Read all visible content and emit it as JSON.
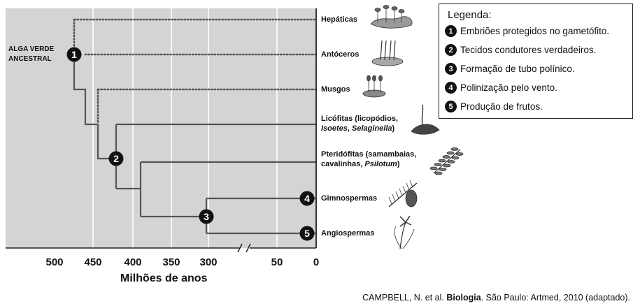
{
  "ancestral_label": [
    "ALGA VERDE",
    "ANCESTRAL"
  ],
  "taxa": [
    {
      "key": "hepaticas",
      "lines": [
        [
          {
            "t": "Hepáticas"
          }
        ]
      ]
    },
    {
      "key": "antoceros",
      "lines": [
        [
          {
            "t": "Antóceros"
          }
        ]
      ]
    },
    {
      "key": "musgos",
      "lines": [
        [
          {
            "t": "Musgos"
          }
        ]
      ]
    },
    {
      "key": "licofitas",
      "lines": [
        [
          {
            "t": "Licófitas (licopódios,"
          }
        ],
        [
          {
            "t": "Isoetes",
            "i": true
          },
          {
            "t": ", "
          },
          {
            "t": "Selaginella",
            "i": true
          },
          {
            "t": ")"
          }
        ]
      ]
    },
    {
      "key": "pteridofitas",
      "lines": [
        [
          {
            "t": "Pteridófitas (samambaias,"
          }
        ],
        [
          {
            "t": "cavalinhas, "
          },
          {
            "t": "Psilotum",
            "i": true
          },
          {
            "t": ")"
          }
        ]
      ]
    },
    {
      "key": "gimnospermas",
      "lines": [
        [
          {
            "t": "Gimnospermas"
          }
        ]
      ]
    },
    {
      "key": "angiospermas",
      "lines": [
        [
          {
            "t": "Angiospermas"
          }
        ]
      ]
    }
  ],
  "axis": {
    "title": "Milhões de anos",
    "ticks": [
      "500",
      "450",
      "400",
      "350",
      "300",
      "50",
      "0"
    ]
  },
  "legend": {
    "title": "Legenda:",
    "items": [
      {
        "n": "1",
        "text": "Embriões protegidos no gametófito."
      },
      {
        "n": "2",
        "text": "Tecidos condutores verdadeiros."
      },
      {
        "n": "3",
        "text": "Formação de tubo polínico."
      },
      {
        "n": "4",
        "text": "Polinização pelo vento."
      },
      {
        "n": "5",
        "text": "Produção de frutos."
      }
    ]
  },
  "nodes": [
    "1",
    "2",
    "3",
    "4",
    "5"
  ],
  "citation": {
    "prefix": "CAMPBELL, N. et al. ",
    "bold": "Biologia",
    "suffix": ". São Paulo: Artmed, 2010 (adaptado)."
  },
  "colors": {
    "panel": "#d4d4d4",
    "grid": "#ffffff",
    "branch": "#555555",
    "marker": "#111111"
  }
}
